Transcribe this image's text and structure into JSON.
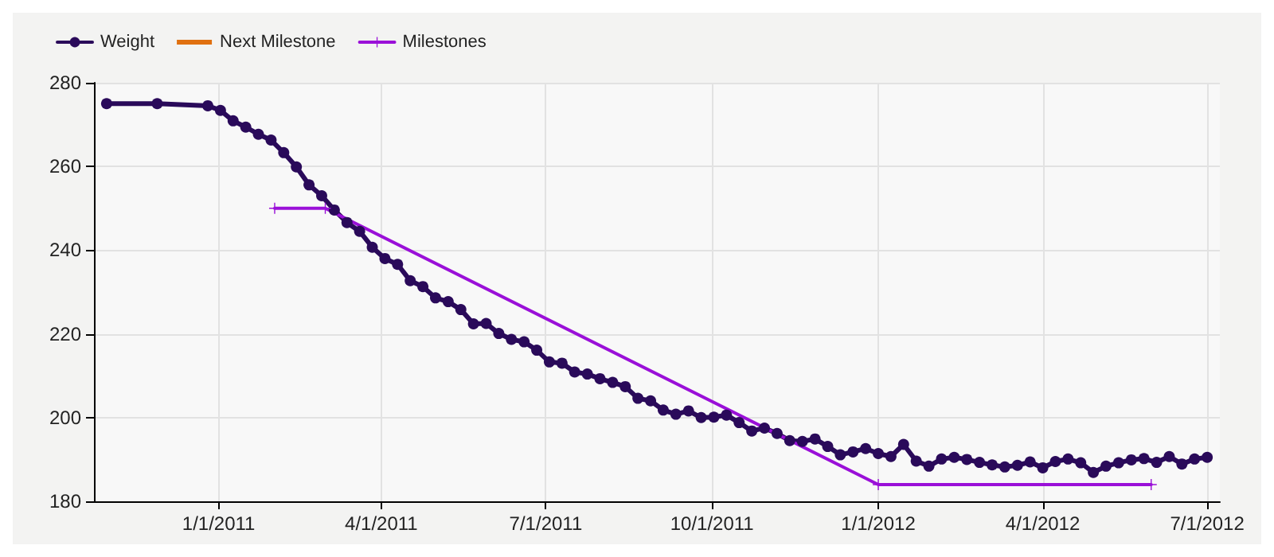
{
  "chart_data": {
    "type": "line",
    "xlim": [
      "2010-10-24",
      "2012-07-08"
    ],
    "ylim": [
      180,
      280
    ],
    "yticks": [
      180,
      200,
      220,
      240,
      260,
      280
    ],
    "xticks": [
      {
        "value": "2011-01-01",
        "label": "1/1/2011"
      },
      {
        "value": "2011-04-01",
        "label": "4/1/2011"
      },
      {
        "value": "2011-07-01",
        "label": "7/1/2011"
      },
      {
        "value": "2011-10-01",
        "label": "10/1/2011"
      },
      {
        "value": "2012-01-01",
        "label": "1/1/2012"
      },
      {
        "value": "2012-04-01",
        "label": "4/1/2012"
      },
      {
        "value": "2012-07-01",
        "label": "7/1/2012"
      }
    ],
    "grid": true,
    "legend": "top left",
    "line_style": "solid",
    "series": [
      {
        "name": "Weight",
        "color": "#2a0a5a",
        "marker": "circle",
        "x": [
          "2010-10-31",
          "2010-11-28",
          "2010-12-26",
          "2011-01-02",
          "2011-01-09",
          "2011-01-16",
          "2011-01-23",
          "2011-01-30",
          "2011-02-06",
          "2011-02-13",
          "2011-02-20",
          "2011-02-27",
          "2011-03-06",
          "2011-03-13",
          "2011-03-20",
          "2011-03-27",
          "2011-04-03",
          "2011-04-10",
          "2011-04-17",
          "2011-04-24",
          "2011-05-01",
          "2011-05-08",
          "2011-05-15",
          "2011-05-22",
          "2011-05-29",
          "2011-06-05",
          "2011-06-12",
          "2011-06-19",
          "2011-06-26",
          "2011-07-03",
          "2011-07-10",
          "2011-07-17",
          "2011-07-24",
          "2011-07-31",
          "2011-08-07",
          "2011-08-14",
          "2011-08-21",
          "2011-08-28",
          "2011-09-04",
          "2011-09-11",
          "2011-09-18",
          "2011-09-25",
          "2011-10-02",
          "2011-10-09",
          "2011-10-16",
          "2011-10-23",
          "2011-10-30",
          "2011-11-06",
          "2011-11-13",
          "2011-11-20",
          "2011-11-27",
          "2011-12-04",
          "2011-12-11",
          "2011-12-18",
          "2011-12-25",
          "2012-01-01",
          "2012-01-08",
          "2012-01-15",
          "2012-01-22",
          "2012-01-29",
          "2012-02-05",
          "2012-02-12",
          "2012-02-19",
          "2012-02-26",
          "2012-03-04",
          "2012-03-11",
          "2012-03-18",
          "2012-03-25",
          "2012-04-01",
          "2012-04-08",
          "2012-04-15",
          "2012-04-22",
          "2012-04-29",
          "2012-05-06",
          "2012-05-13",
          "2012-05-20",
          "2012-05-27",
          "2012-06-03",
          "2012-06-10",
          "2012-06-17",
          "2012-06-24",
          "2012-07-01"
        ],
        "values": [
          275.0,
          275.0,
          274.5,
          273.4,
          270.9,
          269.4,
          267.7,
          266.3,
          263.3,
          259.9,
          255.6,
          253.0,
          249.6,
          246.6,
          244.5,
          240.7,
          238.0,
          236.6,
          232.7,
          231.3,
          228.6,
          227.7,
          225.8,
          222.4,
          222.5,
          220.1,
          218.7,
          218.1,
          216.1,
          213.3,
          213.0,
          210.9,
          210.4,
          209.3,
          208.4,
          207.4,
          204.6,
          204.0,
          201.8,
          200.8,
          201.6,
          200.0,
          200.1,
          200.6,
          198.8,
          196.8,
          197.5,
          196.2,
          194.5,
          194.3,
          194.9,
          193.1,
          191.1,
          191.8,
          192.6,
          191.4,
          190.7,
          193.6,
          189.6,
          188.4,
          190.1,
          190.5,
          190.0,
          189.3,
          188.7,
          188.2,
          188.6,
          189.4,
          188.0,
          189.5,
          190.1,
          189.2,
          186.9,
          188.4,
          189.2,
          189.9,
          190.2,
          189.3,
          190.7,
          188.9,
          190.1,
          190.5
        ]
      },
      {
        "name": "Next Milestone",
        "color": "#e07010",
        "marker": "none"
      },
      {
        "name": "Milestones",
        "color": "#9a10d8",
        "marker": "cross",
        "x": [
          "2011-02-01",
          "2011-03-01",
          "2012-01-01",
          "2012-05-31"
        ],
        "values": [
          250,
          250,
          184,
          184
        ]
      }
    ]
  }
}
